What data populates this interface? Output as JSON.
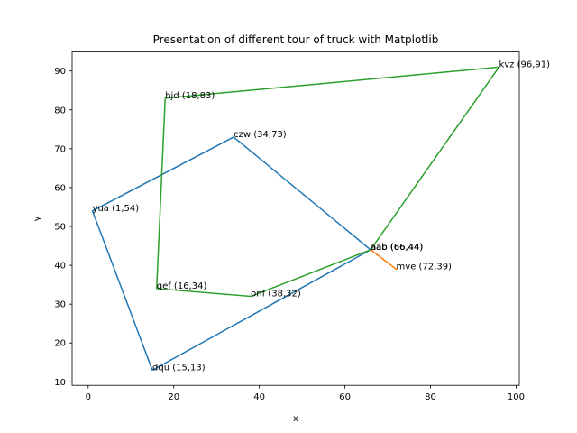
{
  "chart_data": {
    "type": "line",
    "title": "Presentation of different tour of truck with Matplotlib",
    "xlabel": "x",
    "ylabel": "y",
    "xlim": [
      -3.75,
      100.75
    ],
    "ylim": [
      9.1,
      94.9
    ],
    "xticks": [
      0,
      20,
      40,
      60,
      80,
      100
    ],
    "yticks": [
      10,
      20,
      30,
      40,
      50,
      60,
      70,
      80,
      90
    ],
    "grid": false,
    "series": [
      {
        "color": "#1f77b4",
        "x": [
          66,
          34,
          1,
          15,
          66
        ],
        "y": [
          44,
          73,
          54,
          13,
          44
        ]
      },
      {
        "color": "#ff7f0e",
        "x": [
          66,
          72,
          66
        ],
        "y": [
          44,
          39,
          44
        ]
      },
      {
        "color": "#2ca02c",
        "x": [
          66,
          96,
          18,
          16,
          38,
          66
        ],
        "y": [
          44,
          91,
          83,
          34,
          32,
          44
        ]
      }
    ],
    "point_labels": [
      {
        "text": "aab (66,44)",
        "x": 66,
        "y": 44
      },
      {
        "text": "czw (34,73)",
        "x": 34,
        "y": 73
      },
      {
        "text": "yua (1,54)",
        "x": 1,
        "y": 54
      },
      {
        "text": "dqu (15,13)",
        "x": 15,
        "y": 13
      },
      {
        "text": "aab (66,44)",
        "x": 66,
        "y": 44
      },
      {
        "text": "mve (72,39)",
        "x": 72,
        "y": 39
      },
      {
        "text": "aab (66,44)",
        "x": 66,
        "y": 44
      },
      {
        "text": "kvz (96,91)",
        "x": 96,
        "y": 91
      },
      {
        "text": "hjd (18,83)",
        "x": 18,
        "y": 83
      },
      {
        "text": "qef (16,34)",
        "x": 16,
        "y": 34
      },
      {
        "text": "onf (38,32)",
        "x": 38,
        "y": 32
      }
    ]
  }
}
